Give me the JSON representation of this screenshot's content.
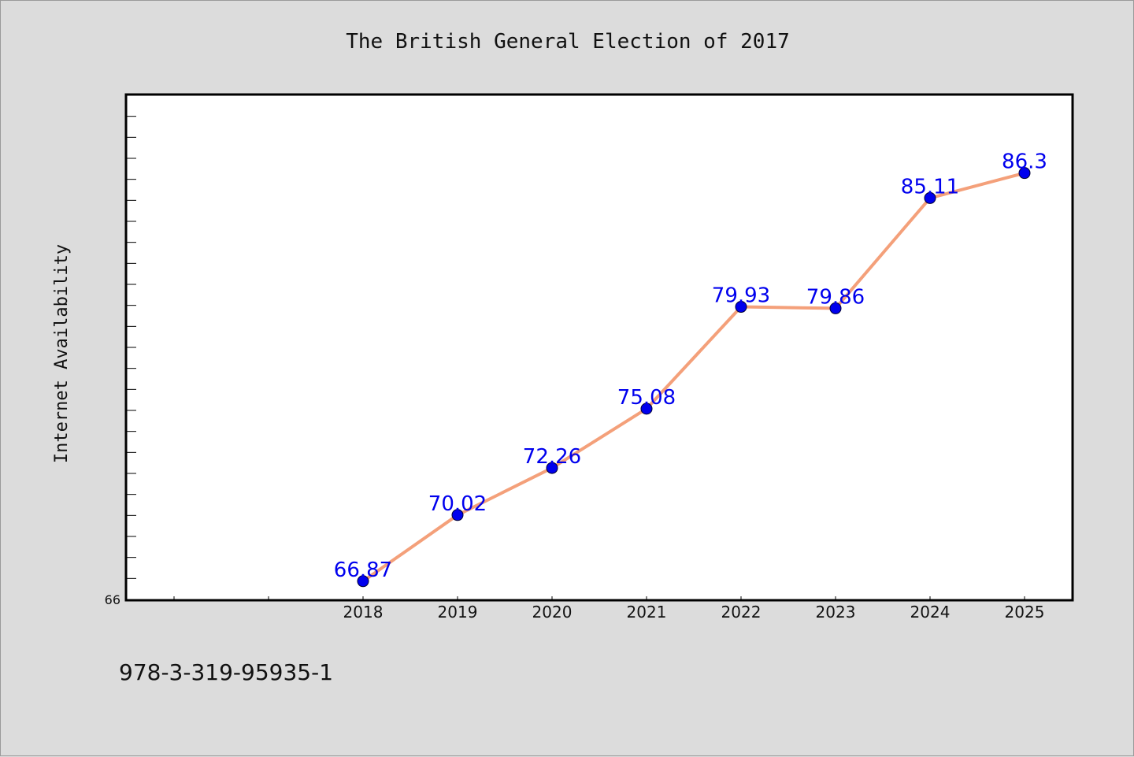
{
  "chart_data": {
    "type": "line",
    "title": "The British General Election of 2017",
    "xlabel": "",
    "ylabel": "Internet Availability",
    "categories": [
      "2018",
      "2019",
      "2020",
      "2021",
      "2022",
      "2023",
      "2024",
      "2025"
    ],
    "series": [
      {
        "values": [
          66.87,
          70.02,
          72.26,
          75.08,
          79.93,
          79.86,
          85.11,
          86.3
        ],
        "labels": [
          "66.87",
          "70.02",
          "72.26",
          "75.08",
          "79.93",
          "79.86",
          "85.11",
          "86.3"
        ],
        "line_color": "#f4a07a",
        "marker_color": "#0000ee"
      }
    ],
    "ylim": [
      66,
      90
    ],
    "y_tick_labels": [
      "66"
    ],
    "grid": false,
    "legend": "none"
  },
  "footer": {
    "isbn": "978-3-319-95935-1"
  }
}
